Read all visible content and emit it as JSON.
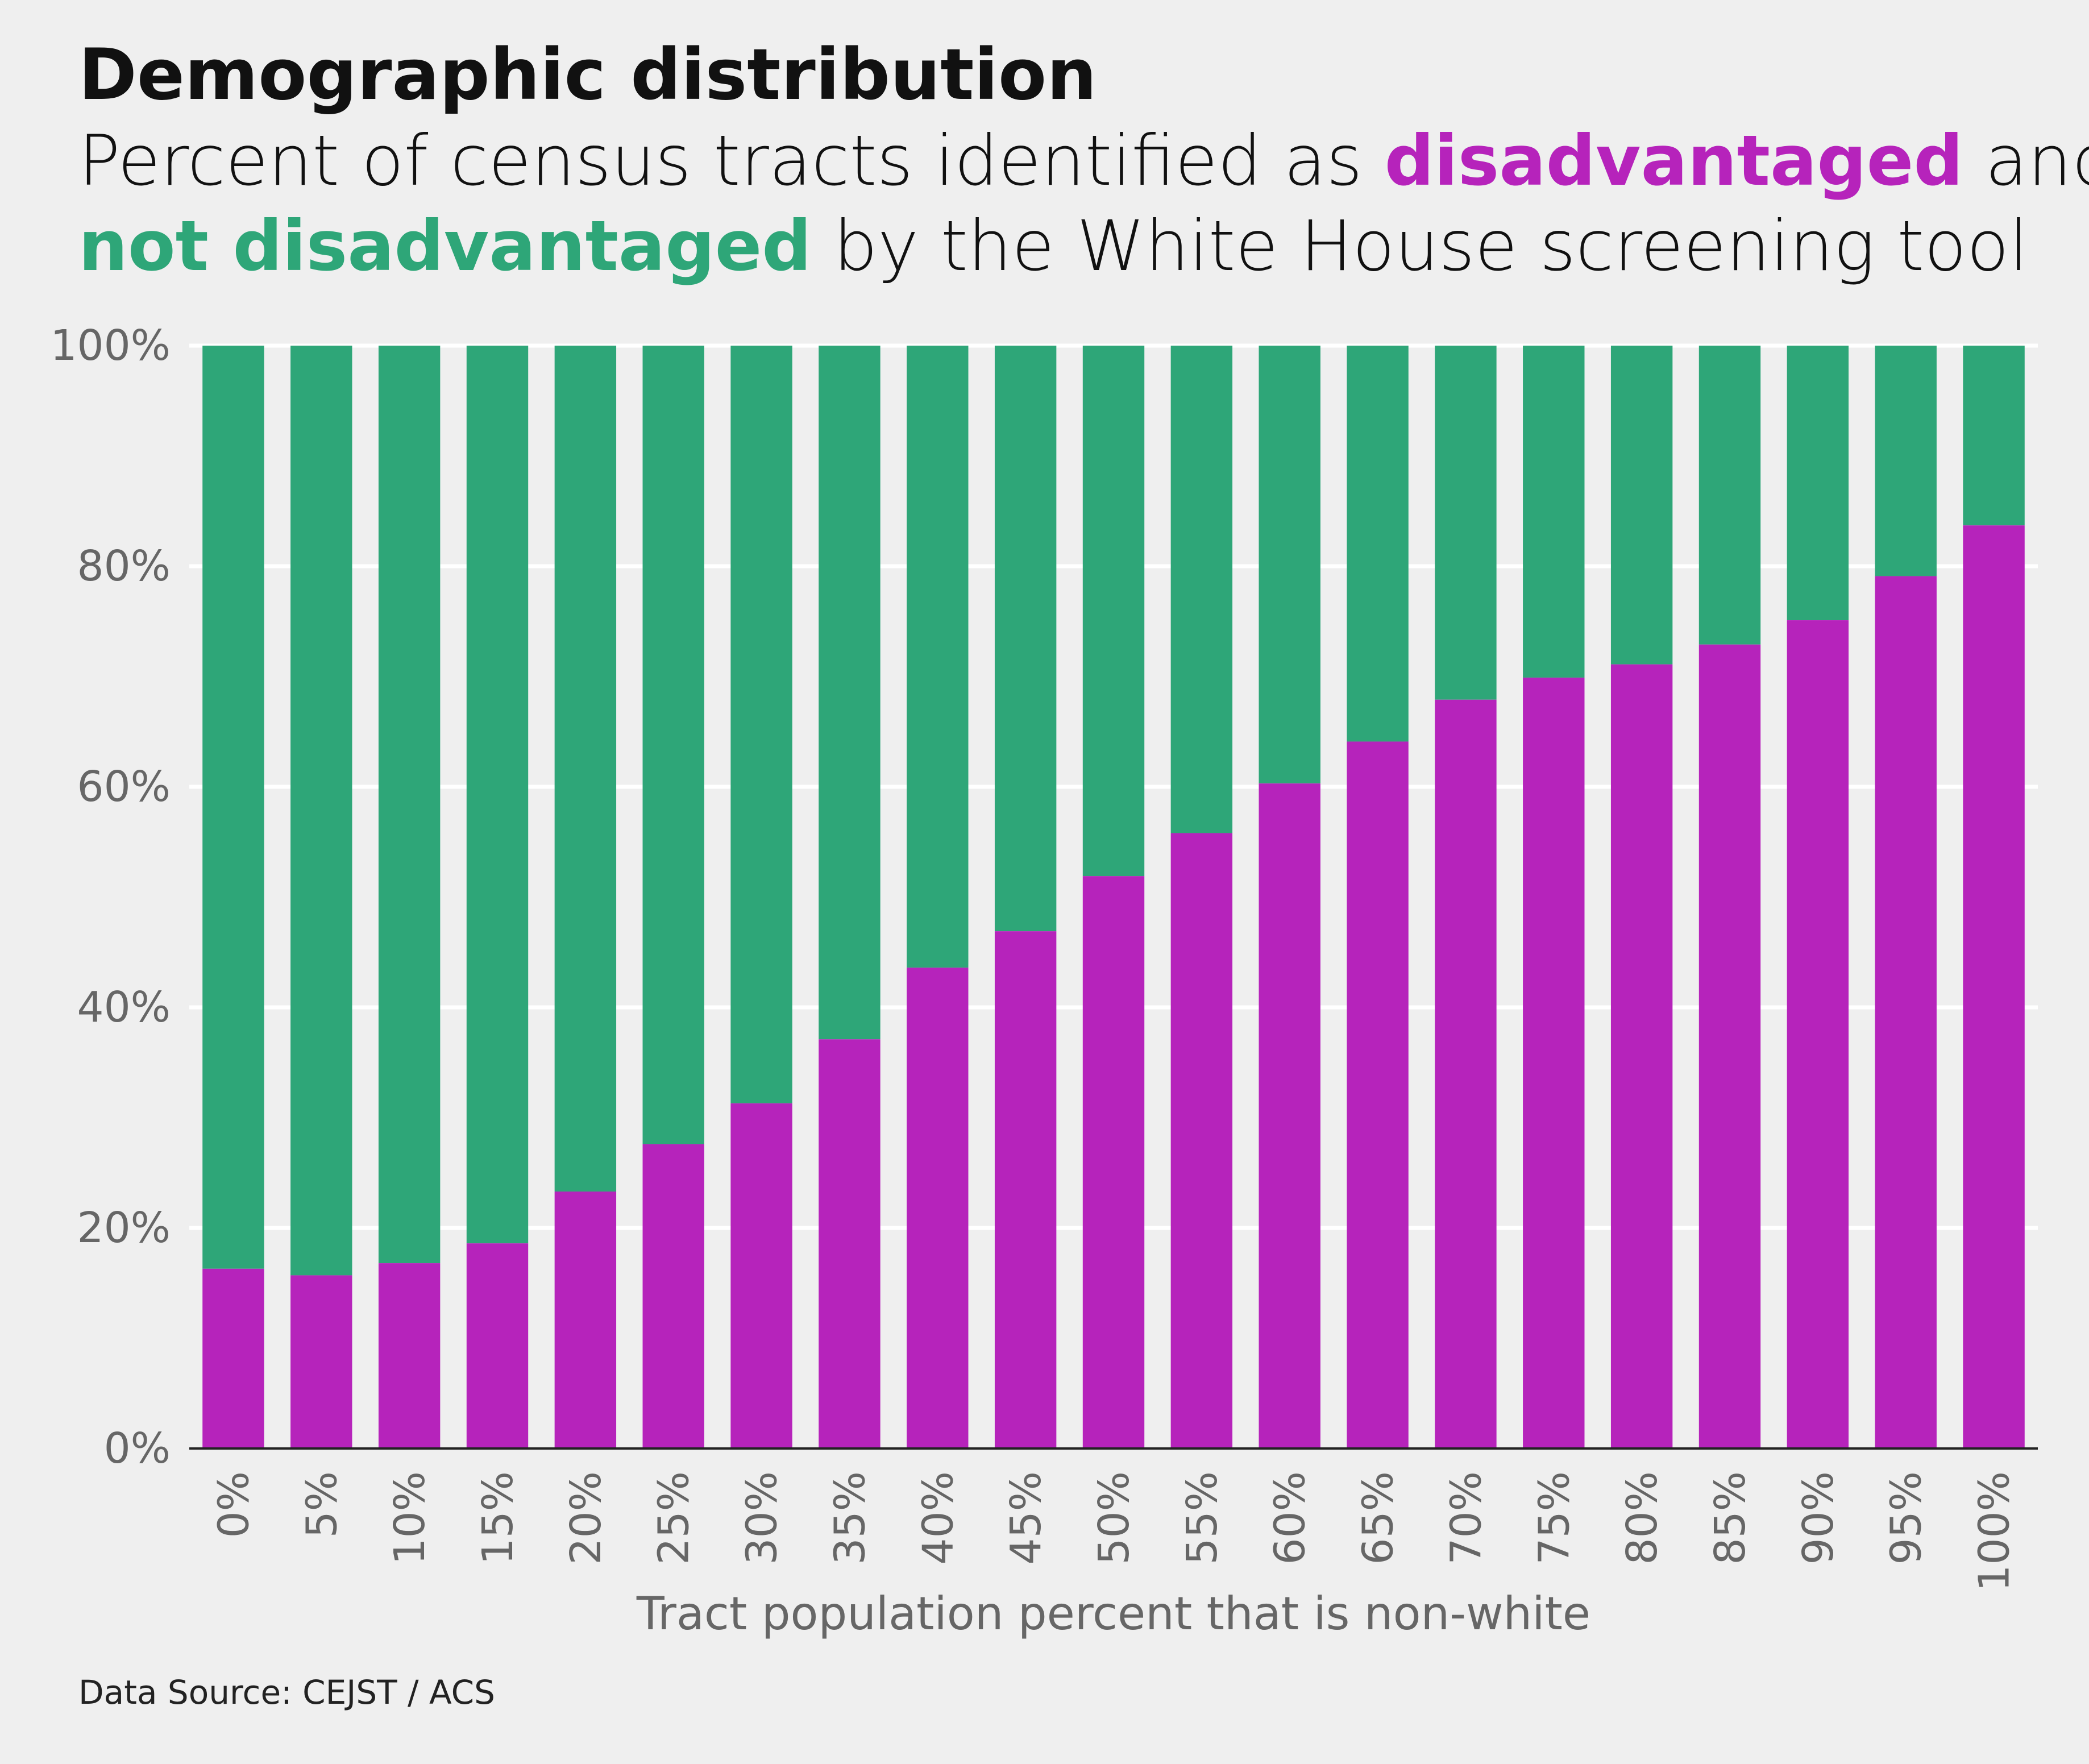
{
  "title": "Demographic distribution",
  "subtitle": {
    "line1_prefix": "Percent of census tracts identified as ",
    "highlight_disadvantaged": "disadvantaged",
    "line1_suffix": " and",
    "highlight_not_disadvantaged": "not disadvantaged",
    "line2_suffix": " by the White House screening tool"
  },
  "colors": {
    "disadvantaged": "#b623bb",
    "not_disadvantaged": "#2ea678",
    "background": "#efefef",
    "gridline": "#ffffff",
    "axis_text": "#666666"
  },
  "source": "Data Source: CEJST / ACS",
  "chart_data": {
    "type": "bar",
    "stacked": true,
    "title": "Demographic distribution",
    "xlabel": "Tract population percent that is non-white",
    "ylabel": "",
    "ylim": [
      0,
      100
    ],
    "yticks": [
      0,
      20,
      40,
      60,
      80,
      100
    ],
    "ytick_labels": [
      "0%",
      "20%",
      "40%",
      "60%",
      "80%",
      "100%"
    ],
    "grid": true,
    "categories": [
      "0%",
      "5%",
      "10%",
      "15%",
      "20%",
      "25%",
      "30%",
      "35%",
      "40%",
      "45%",
      "50%",
      "55%",
      "60%",
      "65%",
      "70%",
      "75%",
      "80%",
      "85%",
      "90%",
      "95%",
      "100%"
    ],
    "series": [
      {
        "name": "disadvantaged",
        "values": [
          16.3,
          15.7,
          16.8,
          18.6,
          23.3,
          27.6,
          31.3,
          37.1,
          43.6,
          46.9,
          51.9,
          55.8,
          60.3,
          64.1,
          67.9,
          69.9,
          71.1,
          72.9,
          75.1,
          79.1,
          83.7
        ]
      },
      {
        "name": "not disadvantaged",
        "values": [
          83.7,
          84.3,
          83.2,
          81.4,
          76.7,
          72.4,
          68.7,
          62.9,
          56.4,
          53.1,
          48.1,
          44.2,
          39.7,
          35.9,
          32.1,
          30.1,
          28.9,
          27.1,
          24.9,
          20.9,
          16.3
        ]
      }
    ]
  }
}
